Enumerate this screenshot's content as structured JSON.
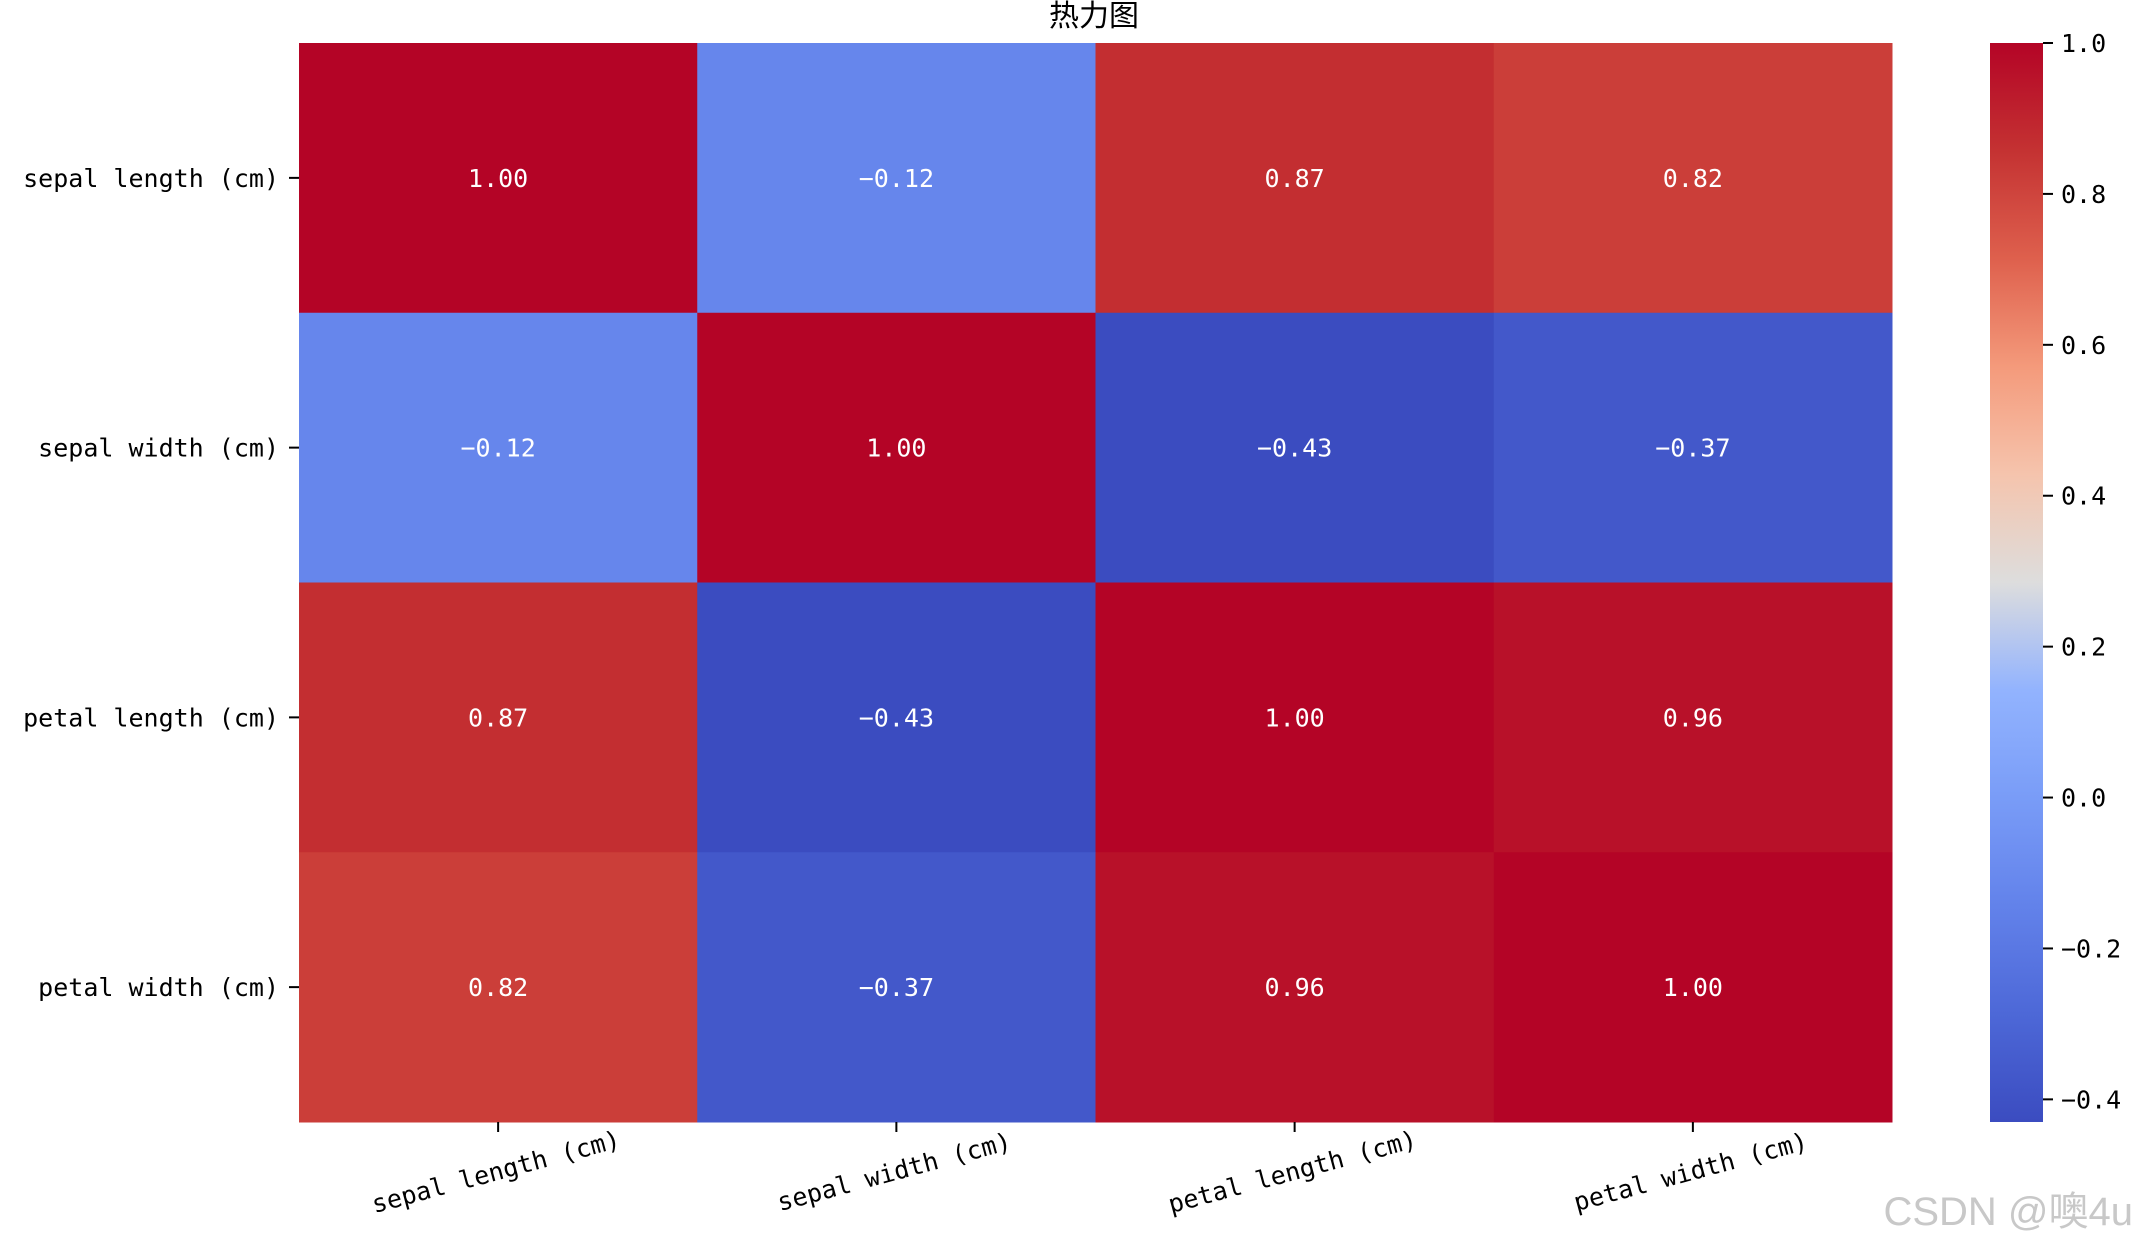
{
  "chart_data": {
    "type": "heatmap",
    "title": "热力图",
    "row_labels": [
      "sepal length (cm)",
      "sepal width (cm)",
      "petal length (cm)",
      "petal width (cm)"
    ],
    "col_labels": [
      "sepal length (cm)",
      "sepal width (cm)",
      "petal length (cm)",
      "petal width (cm)"
    ],
    "values": [
      [
        1.0,
        -0.12,
        0.87,
        0.82
      ],
      [
        -0.12,
        1.0,
        -0.43,
        -0.37
      ],
      [
        0.87,
        -0.43,
        1.0,
        0.96
      ],
      [
        0.82,
        -0.37,
        0.96,
        1.0
      ]
    ],
    "value_format": "2dp",
    "colormap": "coolwarm",
    "vmin": -0.43,
    "vmax": 1.0,
    "colorbar_ticks": [
      "1.0",
      "0.8",
      "0.6",
      "0.4",
      "0.2",
      "0.0",
      "−0.2",
      "−0.4"
    ],
    "colorbar_tick_values": [
      1.0,
      0.8,
      0.6,
      0.4,
      0.2,
      0.0,
      -0.2,
      -0.4
    ],
    "xlabel": "",
    "ylabel": ""
  },
  "watermark": "CSDN @噢4u",
  "colors": {
    "cmap_low": "#3b4cc0",
    "cmap_mid": "#dddddd",
    "cmap_high": "#b40426"
  }
}
